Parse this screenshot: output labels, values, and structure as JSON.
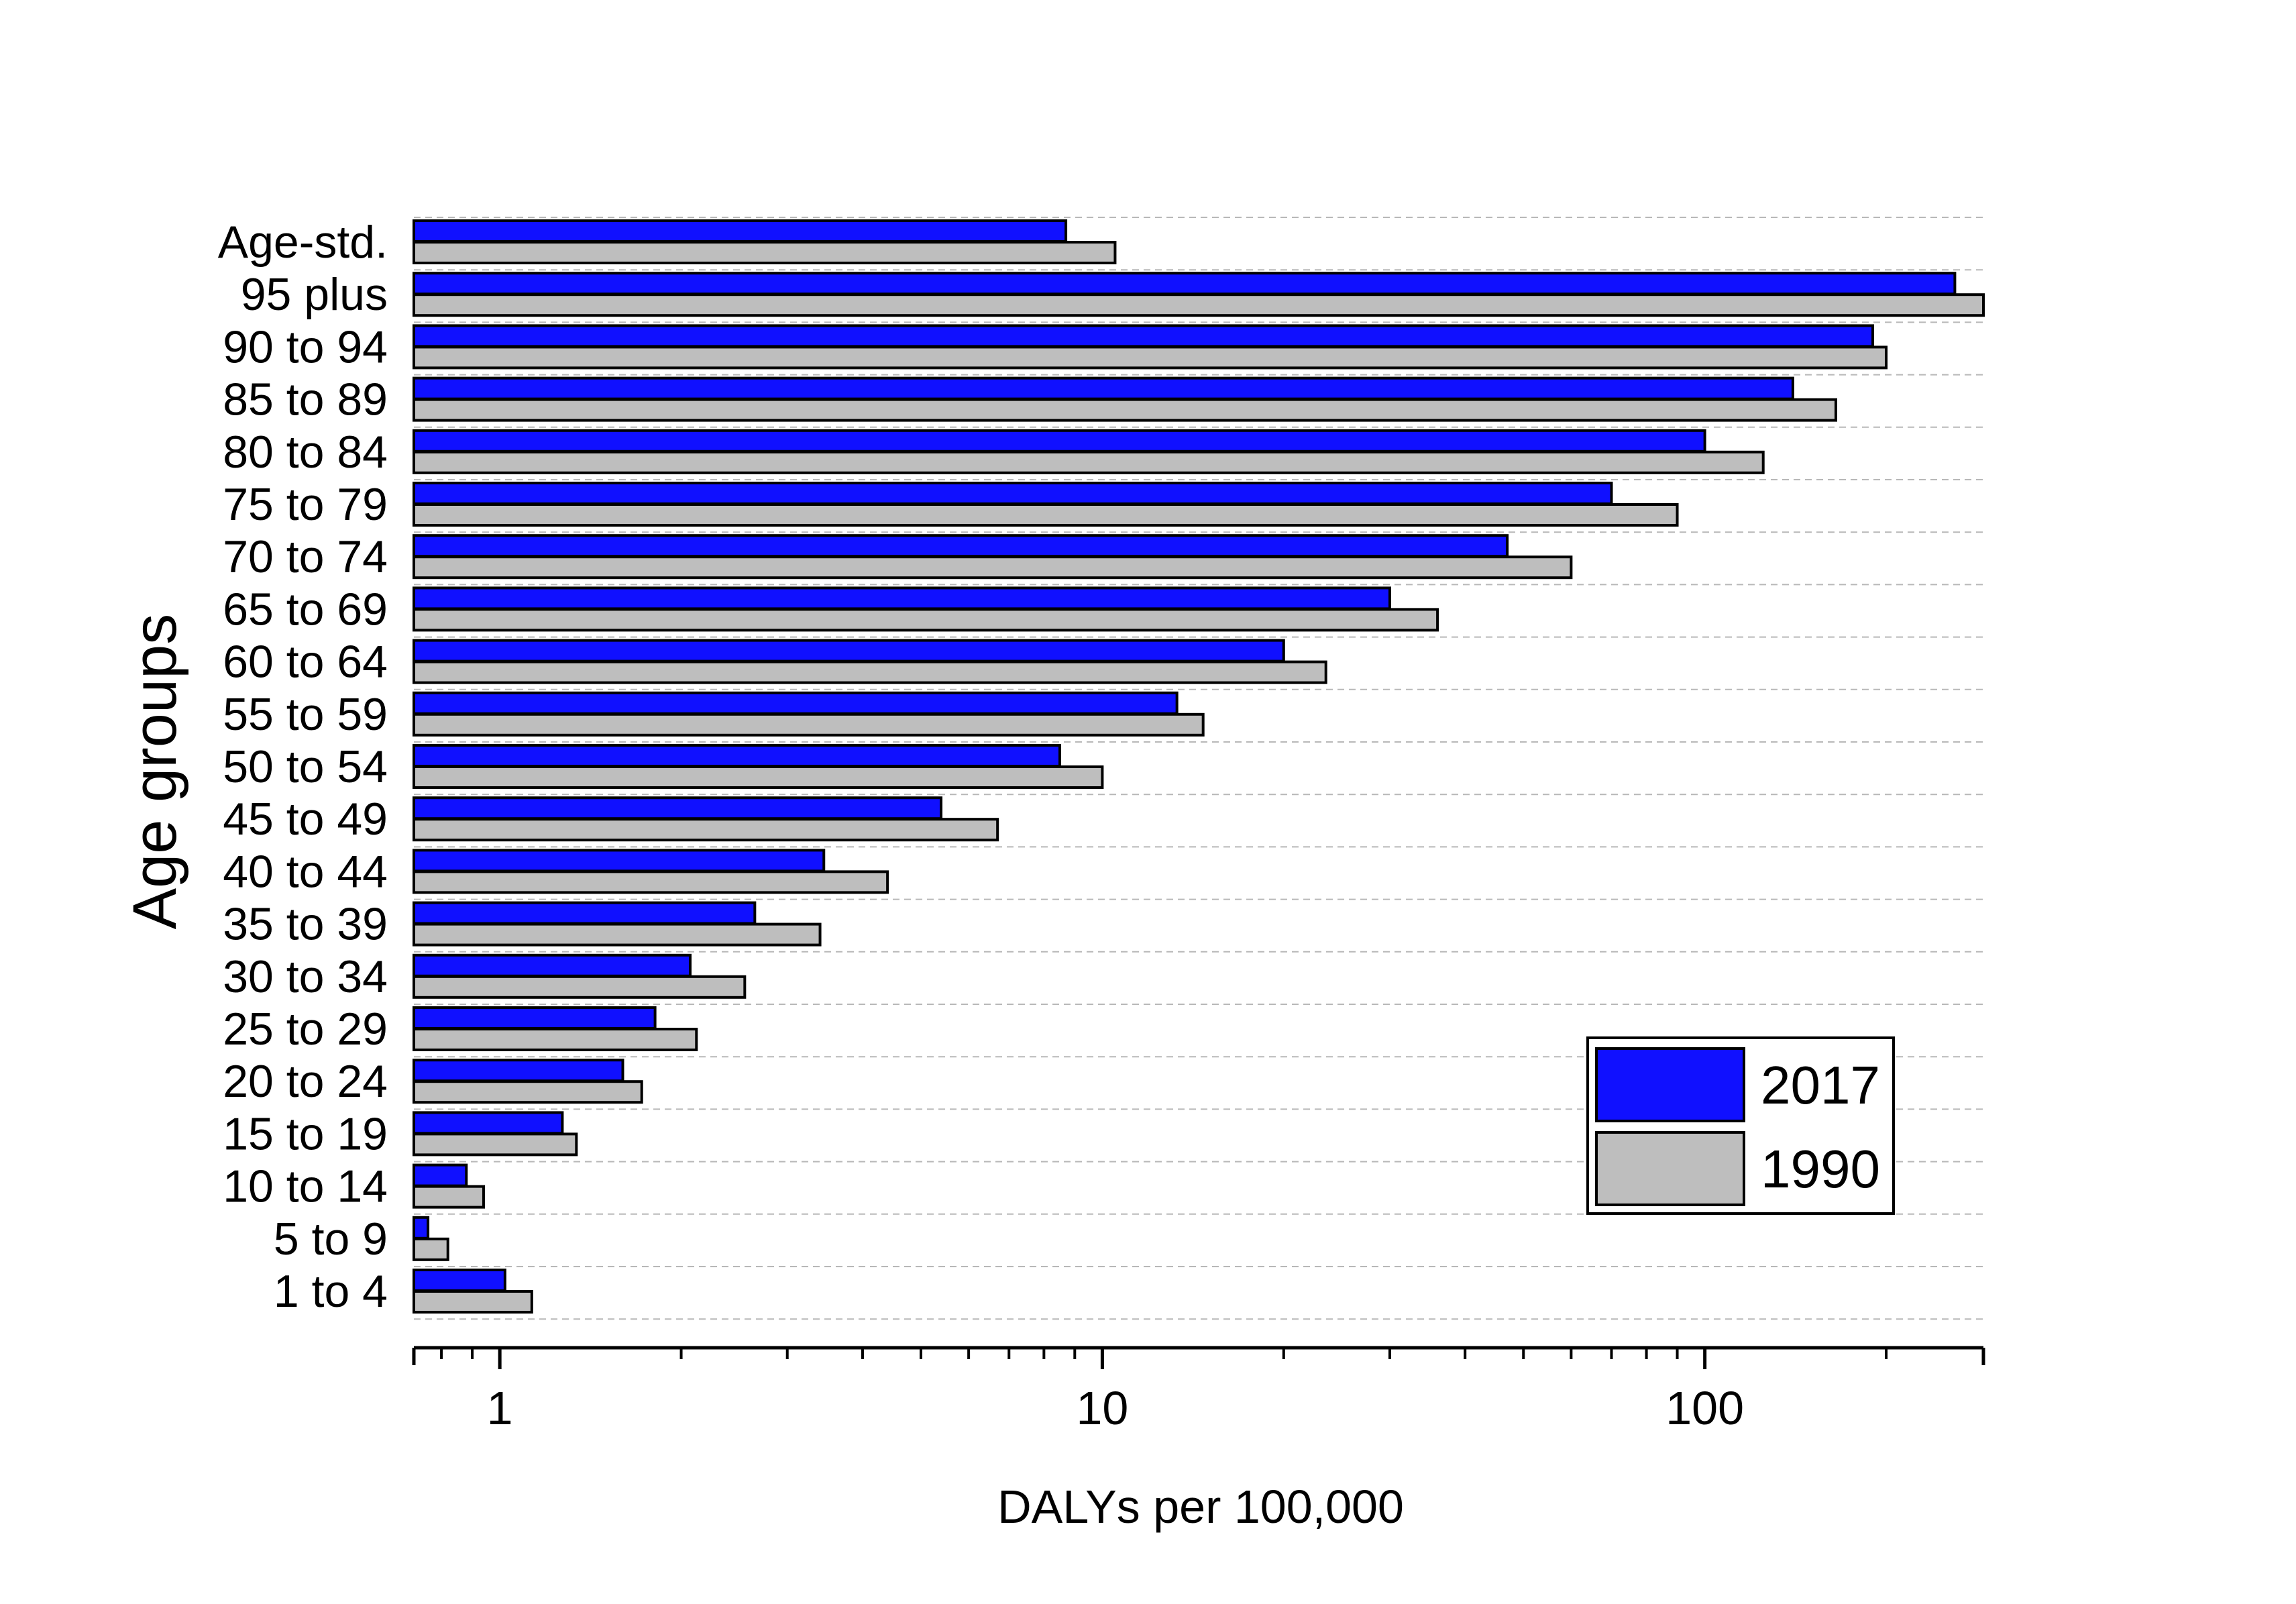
{
  "chart_data": {
    "type": "bar",
    "orientation": "horizontal",
    "title": "",
    "xlabel": "DALYs per 100,000",
    "ylabel": "Age groups",
    "xscale": "log",
    "xlim": [
      0.72,
      290
    ],
    "x_ticks": [
      {
        "value": 1,
        "label": "1"
      },
      {
        "value": 10,
        "label": "10"
      },
      {
        "value": 100,
        "label": "100"
      }
    ],
    "grid": "horizontal dashed",
    "legend_position": "bottom-right",
    "colors": {
      "2017": "#1010ff",
      "1990": "#bebebe"
    },
    "categories": [
      "Age-std.",
      "95 plus",
      "90 to 94",
      "85 to 89",
      "80 to 84",
      "75 to 79",
      "70 to 74",
      "65 to 69",
      "60 to 64",
      "55 to 59",
      "50 to 54",
      "45 to 49",
      "40 to 44",
      "35 to 39",
      "30 to 34",
      "25 to 29",
      "20 to 24",
      "15 to 19",
      "10 to 14",
      "5 to 9",
      "1 to 4"
    ],
    "series": [
      {
        "name": "2017",
        "values": [
          8.7,
          260,
          190,
          140,
          100,
          70,
          47,
          30,
          20,
          13.3,
          8.5,
          5.4,
          3.45,
          2.65,
          2.07,
          1.81,
          1.6,
          1.27,
          0.88,
          0.76,
          1.02
        ]
      },
      {
        "name": "1990",
        "values": [
          10.5,
          290,
          200,
          165,
          125,
          90,
          60,
          36,
          23.5,
          14.7,
          10,
          6.7,
          4.4,
          3.4,
          2.55,
          2.12,
          1.72,
          1.34,
          0.94,
          0.82,
          1.13
        ]
      }
    ]
  }
}
